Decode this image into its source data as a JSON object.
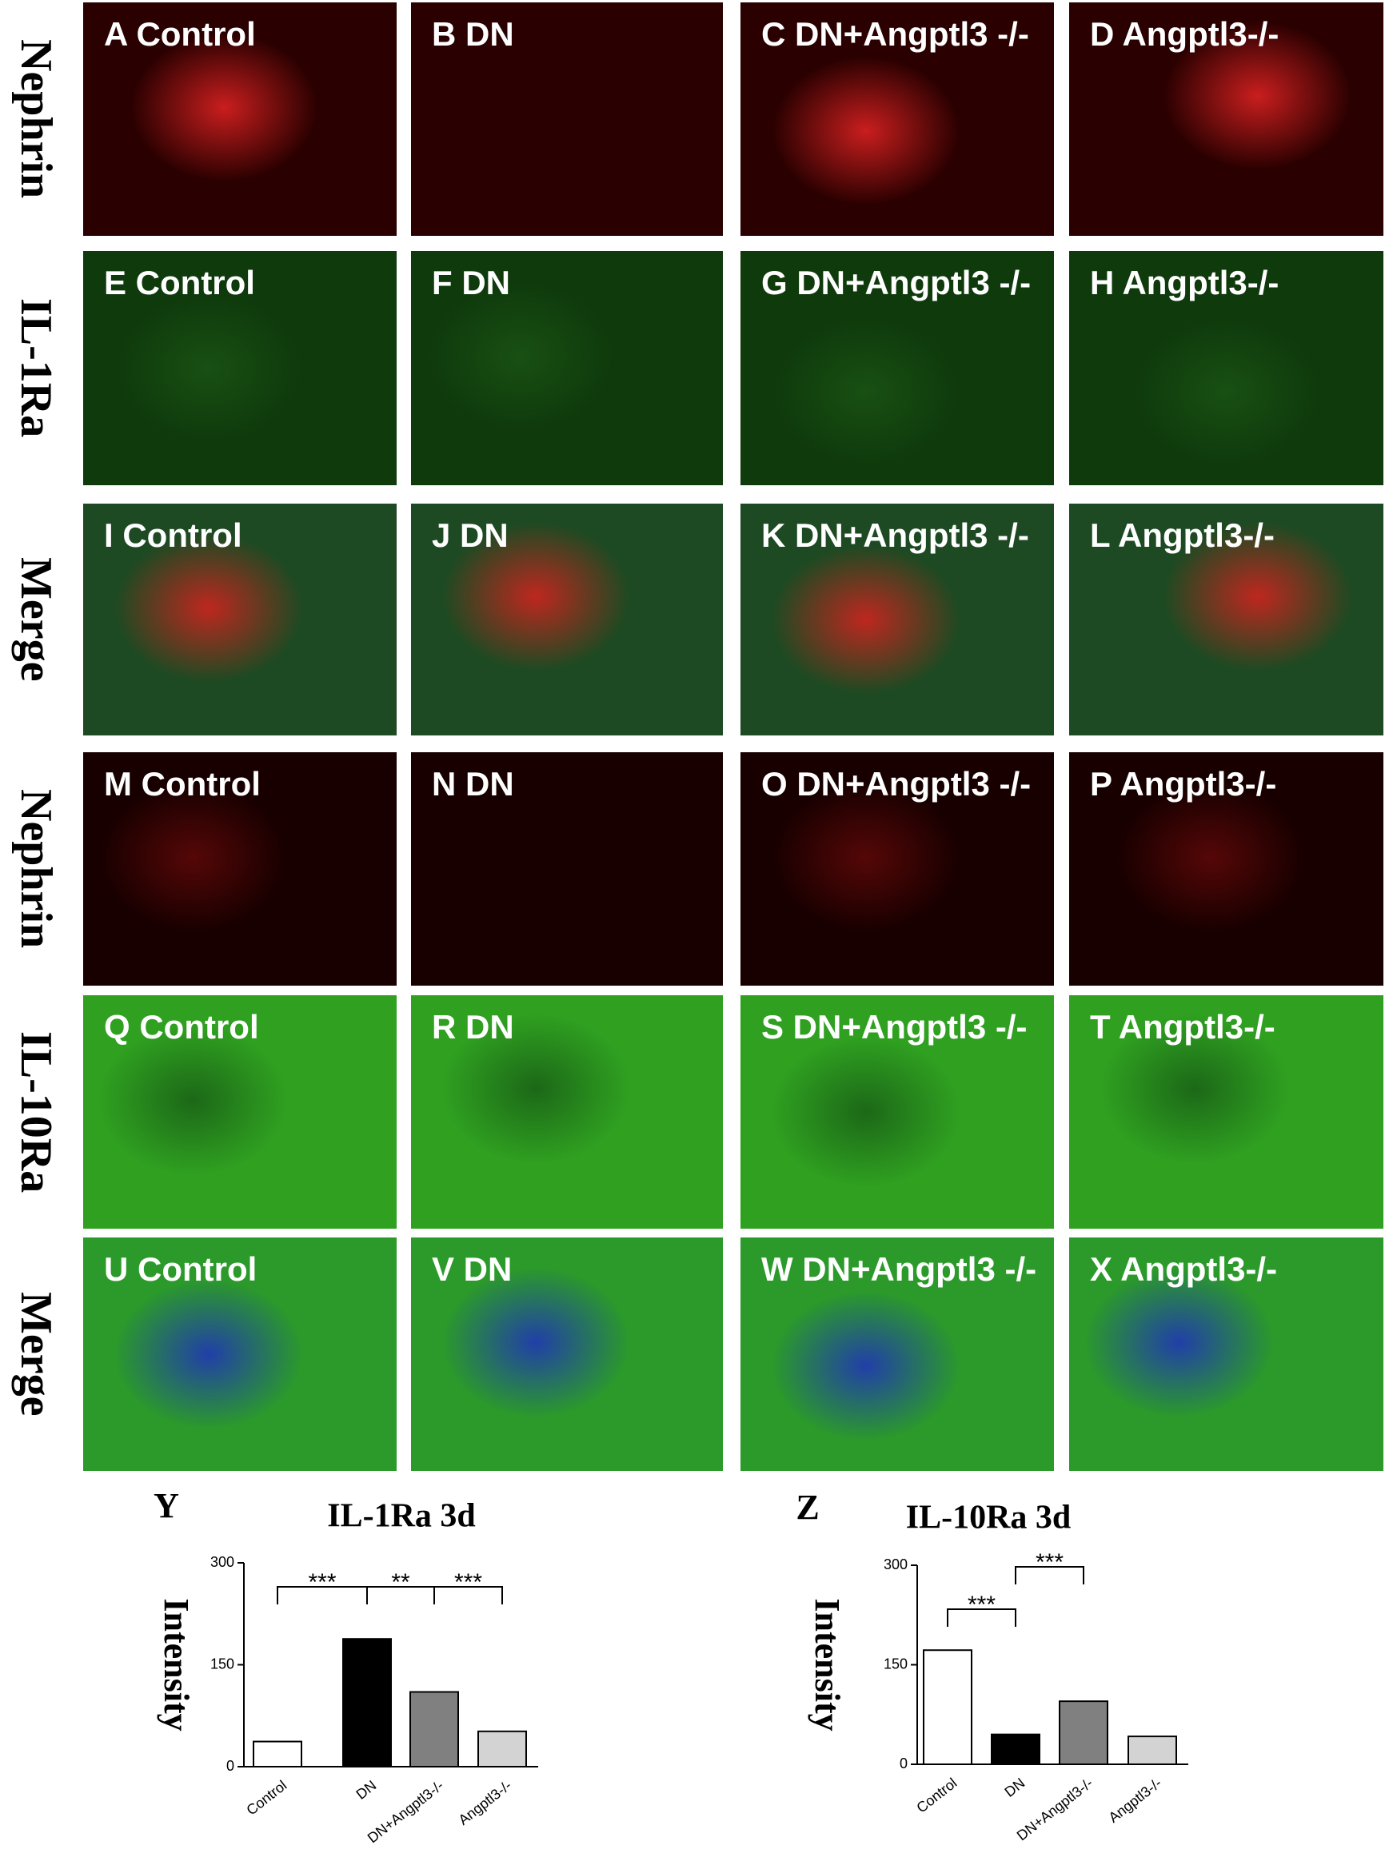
{
  "row_labels": [
    "Nephrin",
    "IL-1Ra",
    "Merge",
    "Nephrin",
    "IL-10Ra",
    "Merge"
  ],
  "panels": [
    "A Control",
    "B DN",
    "C DN+Angptl3 -/-",
    "D Angptl3-/-",
    "E Control",
    "F DN",
    "G DN+Angptl3 -/-",
    "H Angptl3-/-",
    "I Control",
    "J DN",
    "K DN+Angptl3 -/-",
    "L Angptl3-/-",
    "M Control",
    "N DN",
    "O DN+Angptl3 -/-",
    "P Angptl3-/-",
    "Q Control",
    "R DN",
    "S DN+Angptl3 -/-",
    "T Angptl3-/-",
    "U Control",
    "V DN",
    "W DN+Angptl3 -/-",
    "X Angptl3-/-"
  ],
  "chart_data": [
    {
      "type": "bar",
      "letter": "Y",
      "title": "IL-1Ra 3d",
      "y_label": "Intensity",
      "categories": [
        "Control",
        "DN",
        "DN+Angptl3-/-",
        "Angptl3-/-"
      ],
      "values": [
        37,
        188,
        110,
        52
      ],
      "colors": [
        "#ffffff",
        "#000000",
        "#808080",
        "#d3d3d3"
      ],
      "ylim": [
        0,
        300
      ],
      "yticks": [
        0,
        150,
        300
      ],
      "annotations": [
        "***",
        "**",
        "***"
      ]
    },
    {
      "type": "bar",
      "letter": "Z",
      "title": "IL-10Ra 3d",
      "y_label": "Intensity",
      "categories": [
        "Control",
        "DN",
        "DN+Angptl3-/-",
        "Angptl3-/-"
      ],
      "values": [
        172,
        45,
        95,
        42
      ],
      "colors": [
        "#ffffff",
        "#000000",
        "#808080",
        "#d3d3d3"
      ],
      "ylim": [
        0,
        300
      ],
      "yticks": [
        0,
        150,
        300
      ],
      "annotations": [
        "***",
        "***"
      ]
    }
  ]
}
